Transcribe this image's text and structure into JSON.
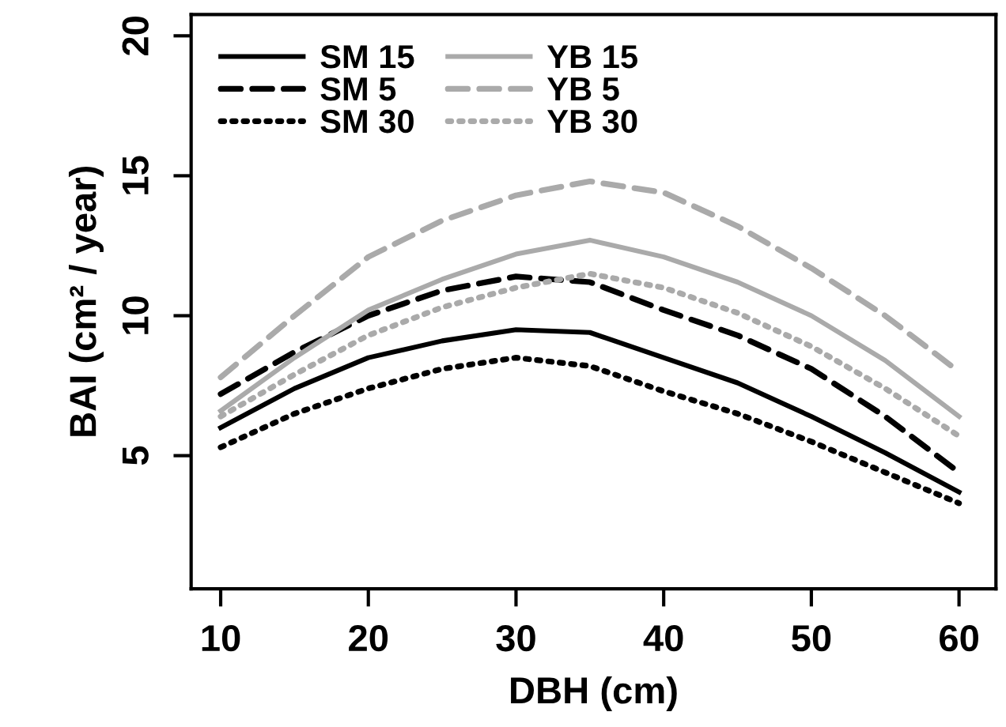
{
  "chart_data": {
    "type": "line",
    "xlabel": "DBH (cm)",
    "ylabel": "BAI (cm² / year)",
    "x": [
      10,
      15,
      20,
      25,
      30,
      35,
      40,
      45,
      50,
      55,
      60
    ],
    "xlim": [
      8,
      62.5
    ],
    "xticks": [
      10,
      20,
      30,
      40,
      50,
      60
    ],
    "ylim": [
      0.24,
      20.76
    ],
    "yticks": [
      5,
      10,
      15,
      20
    ],
    "grid": false,
    "legend": "top left",
    "marker": "none",
    "series": [
      {
        "name": "SM 15",
        "color": "#000000",
        "line_style": "solid",
        "values": [
          6.0,
          7.4,
          8.5,
          9.1,
          9.5,
          9.4,
          8.5,
          7.6,
          6.4,
          5.1,
          3.7
        ]
      },
      {
        "name": "SM 5",
        "color": "#000000",
        "line_style": "dashed",
        "values": [
          7.2,
          8.7,
          10.0,
          10.9,
          11.4,
          11.2,
          10.2,
          9.3,
          8.1,
          6.4,
          4.4
        ]
      },
      {
        "name": "SM 30",
        "color": "#000000",
        "line_style": "dotted",
        "values": [
          5.3,
          6.5,
          7.4,
          8.1,
          8.5,
          8.2,
          7.3,
          6.5,
          5.5,
          4.4,
          3.3
        ]
      },
      {
        "name": "YB 15",
        "color": "#aaaaaa",
        "line_style": "solid",
        "values": [
          6.6,
          8.5,
          10.2,
          11.3,
          12.2,
          12.7,
          12.1,
          11.2,
          10.0,
          8.4,
          6.4
        ]
      },
      {
        "name": "YB 5",
        "color": "#aaaaaa",
        "line_style": "dashed",
        "values": [
          7.8,
          10.0,
          12.1,
          13.4,
          14.3,
          14.8,
          14.4,
          13.2,
          11.7,
          10.0,
          8.0
        ]
      },
      {
        "name": "YB 30",
        "color": "#aaaaaa",
        "line_style": "dotted",
        "values": [
          6.4,
          7.9,
          9.3,
          10.3,
          11.0,
          11.5,
          11.0,
          10.1,
          8.9,
          7.4,
          5.7
        ]
      }
    ]
  }
}
